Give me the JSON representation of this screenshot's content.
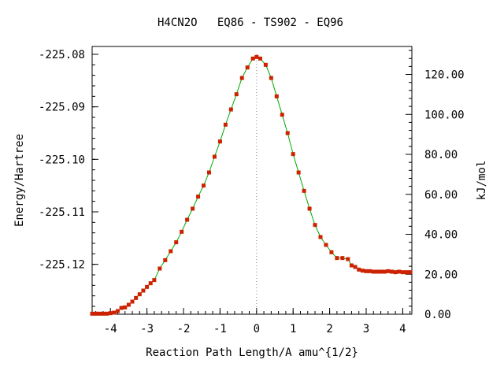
{
  "chart_data": {
    "type": "line",
    "title": "H4CN2O   EQ86 - TS902 - EQ96",
    "xlabel": "Reaction Path Length/A amu^{1/2}",
    "ylabel": "Energy/Hartree",
    "y2label": "kJ/mol",
    "xlim": [
      -4.5,
      4.25
    ],
    "ylim": [
      -225.1295,
      -225.0785
    ],
    "y2lim": [
      0,
      134
    ],
    "x_ticks": [
      -4,
      -3,
      -2,
      -1,
      0,
      1,
      2,
      3,
      4
    ],
    "y_ticks": [
      -225.08,
      -225.09,
      -225.1,
      -225.11,
      -225.12
    ],
    "y_tick_labels": [
      "-225.08",
      "-225.09",
      "-225.10",
      "-225.11",
      "-225.12"
    ],
    "y2_ticks": [
      0,
      20,
      40,
      60,
      80,
      100,
      120
    ],
    "y2_tick_labels": [
      "0.00",
      "20.00",
      "40.00",
      "60.00",
      "80.00",
      "100.00",
      "120.00"
    ],
    "ts_x": 0,
    "line_color": "#00aa00",
    "marker_color": "#cc2200",
    "grid": false,
    "series": [
      {
        "x": [
          -4.5,
          -4.4,
          -4.3,
          -4.2,
          -4.1,
          -4.0,
          -3.9,
          -3.8,
          -3.7,
          -3.6,
          -3.5,
          -3.4,
          -3.3,
          -3.2,
          -3.1,
          -3.0,
          -2.9,
          -2.8,
          -2.65,
          -2.5,
          -2.35,
          -2.2,
          -2.05,
          -1.9,
          -1.75,
          -1.6,
          -1.45,
          -1.3,
          -1.15,
          -1.0,
          -0.85,
          -0.7,
          -0.55,
          -0.4,
          -0.25,
          -0.1,
          0.0,
          0.1,
          0.25,
          0.4,
          0.55,
          0.7,
          0.85,
          1.0,
          1.15,
          1.3,
          1.45,
          1.6,
          1.75,
          1.9,
          2.05,
          2.2,
          2.35,
          2.5,
          2.6,
          2.7,
          2.8,
          2.9,
          3.0,
          3.1,
          3.2,
          3.3,
          3.4,
          3.5,
          3.6,
          3.7,
          3.8,
          3.9,
          4.0,
          4.1,
          4.2
        ],
        "y": [
          -225.1294,
          -225.1294,
          -225.1294,
          -225.1294,
          -225.1294,
          -225.1293,
          -225.1292,
          -225.1289,
          -225.1283,
          -225.1282,
          -225.1277,
          -225.1271,
          -225.1264,
          -225.1257,
          -225.125,
          -225.1243,
          -225.1236,
          -225.123,
          -225.1208,
          -225.1192,
          -225.1175,
          -225.1158,
          -225.1138,
          -225.1115,
          -225.1094,
          -225.1071,
          -225.105,
          -225.1025,
          -225.0995,
          -225.0966,
          -225.0934,
          -225.0905,
          -225.0876,
          -225.0845,
          -225.0825,
          -225.0808,
          -225.0805,
          -225.0808,
          -225.082,
          -225.0845,
          -225.088,
          -225.0915,
          -225.095,
          -225.099,
          -225.1025,
          -225.106,
          -225.1094,
          -225.1125,
          -225.1148,
          -225.1163,
          -225.1177,
          -225.1188,
          -225.1188,
          -225.119,
          -225.1202,
          -225.1205,
          -225.121,
          -225.1212,
          -225.1213,
          -225.1213,
          -225.1214,
          -225.1214,
          -225.1214,
          -225.1214,
          -225.1213,
          -225.1214,
          -225.1215,
          -225.1214,
          -225.1215,
          -225.1215,
          -225.1215
        ]
      }
    ]
  }
}
